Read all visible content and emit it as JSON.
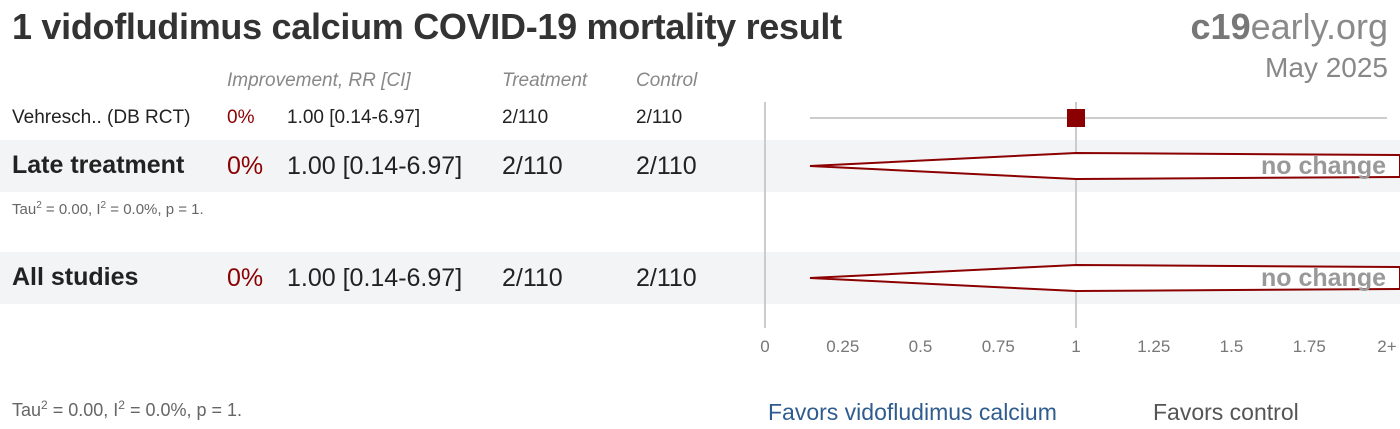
{
  "header": {
    "title": "1 vidofludimus calcium COVID-19 mortality result",
    "brand_bold": "c19",
    "brand_rest": "early.org",
    "date": "May 2025"
  },
  "columns": {
    "improvement": "Improvement, RR [CI]",
    "treatment": "Treatment",
    "control": "Control"
  },
  "rows": {
    "study": {
      "name": "Vehresch.. (DB RCT)",
      "improvement": "0%",
      "rr_ci": "1.00 [0.14-6.97]",
      "treatment": "2/110",
      "control": "2/110"
    },
    "late": {
      "name": "Late treatment",
      "improvement": "0%",
      "rr_ci": "1.00 [0.14-6.97]",
      "treatment": "2/110",
      "control": "2/110",
      "label": "no change"
    },
    "all": {
      "name": "All studies",
      "improvement": "0%",
      "rr_ci": "1.00 [0.14-6.97]",
      "treatment": "2/110",
      "control": "2/110",
      "label": "no change"
    }
  },
  "stats": {
    "late_a": "Tau",
    "late_b": " = 0.00, I",
    "late_c": " = 0.0%, p = 1.",
    "all_a": "Tau",
    "all_b": " = 0.00, I",
    "all_c": " = 0.0%, p = 1.",
    "sup": "2"
  },
  "favors": {
    "left": "Favors vidofludimus calcium",
    "right": "Favors control"
  },
  "colors": {
    "accent": "#8b0000",
    "favors_left": "#2f5c8f",
    "axis": "#cccccc"
  },
  "chart_data": {
    "type": "forest",
    "xlim": [
      0,
      2
    ],
    "ticks": [
      "0",
      "0.25",
      "0.5",
      "0.75",
      "1",
      "1.25",
      "1.5",
      "1.75",
      "2+"
    ],
    "tick_values": [
      0,
      0.25,
      0.5,
      0.75,
      1,
      1.25,
      1.5,
      1.75,
      2
    ],
    "reference": 1,
    "studies": [
      {
        "name": "Vehresch.. (DB RCT)",
        "rr": 1.0,
        "ci_low": 0.14,
        "ci_high": 6.97,
        "marker": "square"
      }
    ],
    "pooled": [
      {
        "name": "Late treatment",
        "rr": 1.0,
        "ci_low": 0.14,
        "ci_high": 6.97,
        "marker": "diamond"
      },
      {
        "name": "All studies",
        "rr": 1.0,
        "ci_low": 0.14,
        "ci_high": 6.97,
        "marker": "diamond"
      }
    ]
  }
}
